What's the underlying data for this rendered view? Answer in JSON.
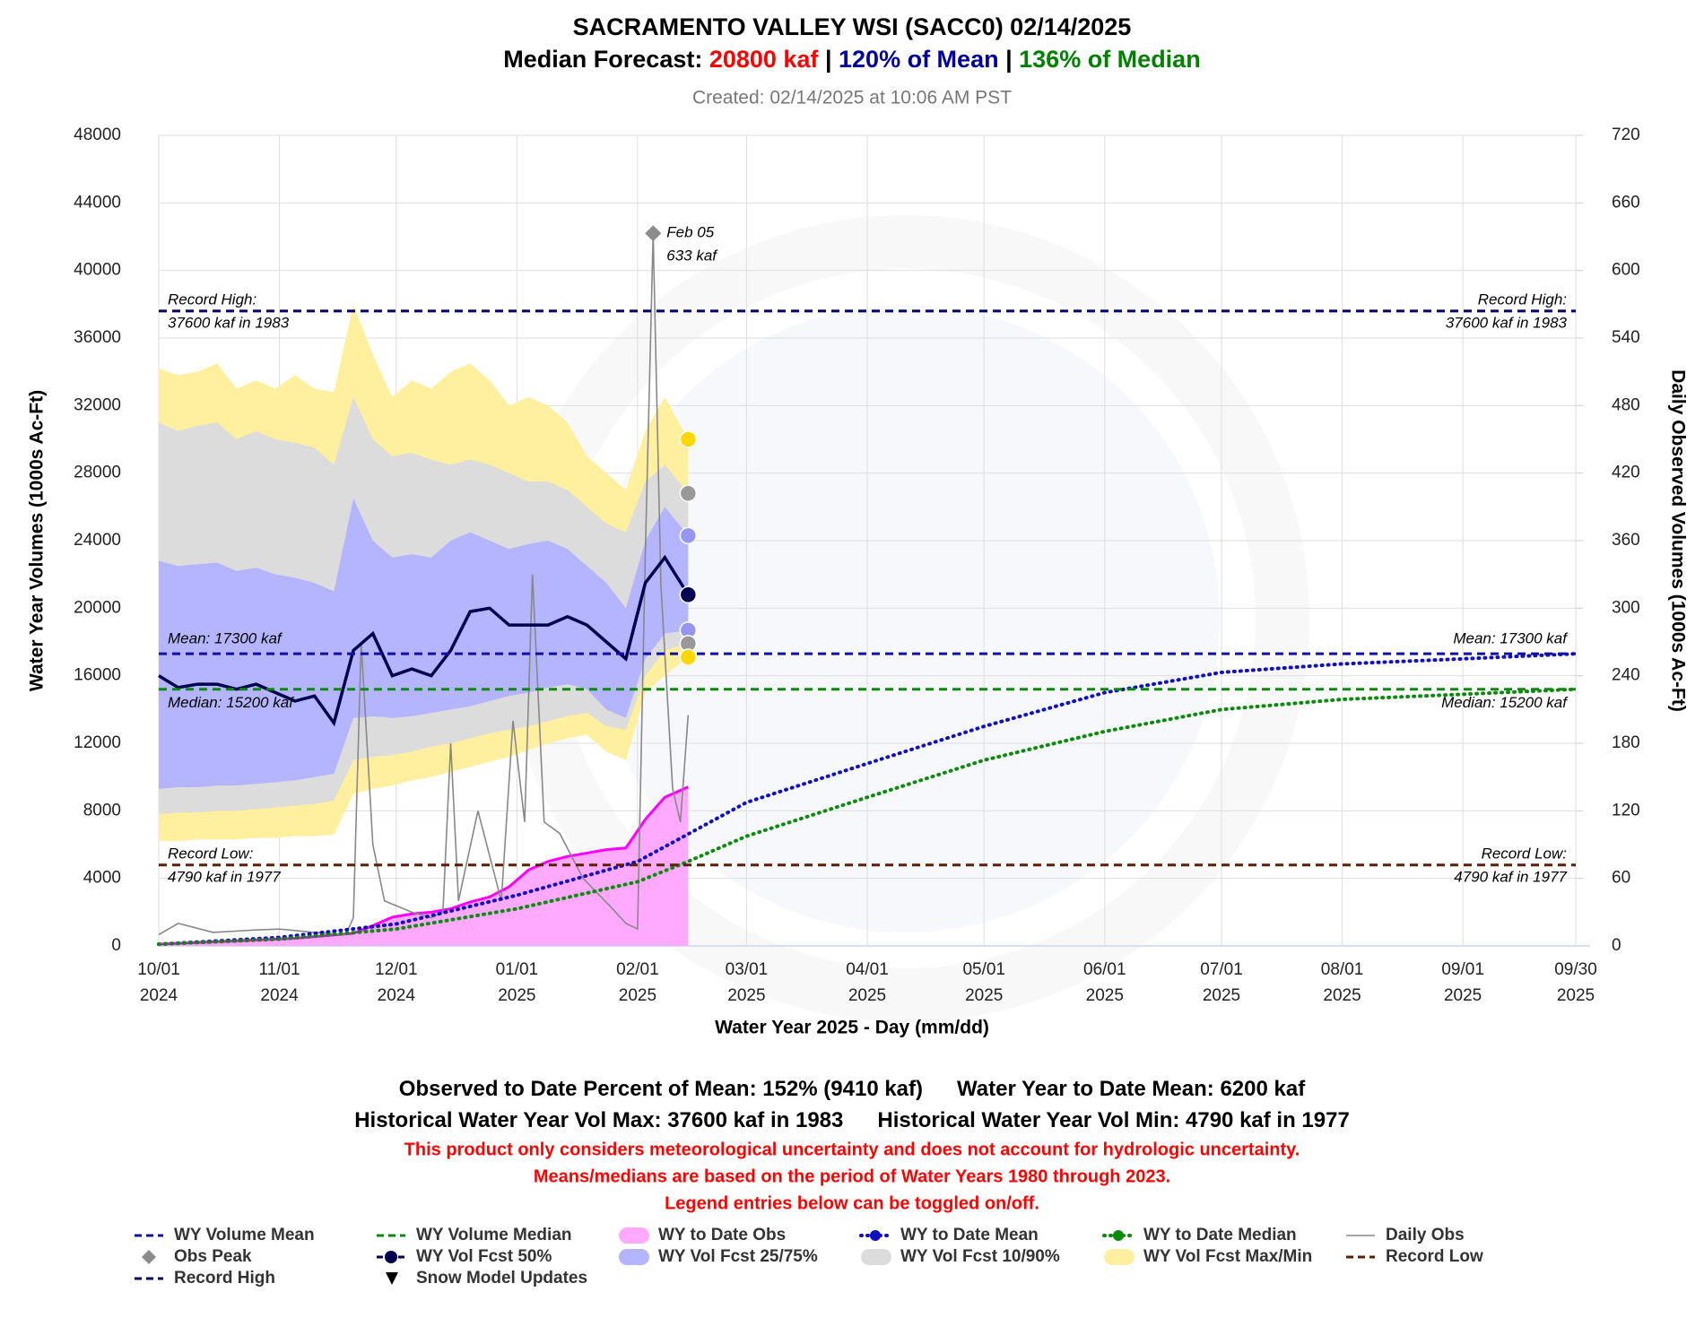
{
  "chart_data": {
    "type": "hydrograph",
    "title": "SACRAMENTO VALLEY WSI (SACC0)  02/14/2025",
    "title_parts": [
      {
        "text": "Median Forecast: ",
        "color": "#000000"
      },
      {
        "text": "20800 kaf",
        "color": "#ff0000"
      },
      {
        "text": "  |  ",
        "color": "#000000"
      },
      {
        "text": "120% of Mean",
        "color": "#00009c"
      },
      {
        "text": "  |  ",
        "color": "#000000"
      },
      {
        "text": "136% of Median",
        "color": "#008000"
      }
    ],
    "subtitle": "Created: 02/14/2025 at 10:06 AM PST",
    "x_label": "Water Year 2025 - Day (mm/dd)",
    "y_label": "Water Year Volumes (1000s Ac-Ft)",
    "y2_label": "Daily Observed Volumes (1000s Ac-Ft)",
    "xlim": [
      "2024-10-01",
      "2025-09-30"
    ],
    "xticks": [
      {
        "value": "2024-10-01",
        "label": [
          "10/01",
          "2024"
        ]
      },
      {
        "value": "2024-11-01",
        "label": [
          "11/01",
          "2024"
        ]
      },
      {
        "value": "2024-12-01",
        "label": [
          "12/01",
          "2024"
        ]
      },
      {
        "value": "2025-01-01",
        "label": [
          "01/01",
          "2025"
        ]
      },
      {
        "value": "2025-02-01",
        "label": [
          "02/01",
          "2025"
        ]
      },
      {
        "value": "2025-03-01",
        "label": [
          "03/01",
          "2025"
        ]
      },
      {
        "value": "2025-04-01",
        "label": [
          "04/01",
          "2025"
        ]
      },
      {
        "value": "2025-05-01",
        "label": [
          "05/01",
          "2025"
        ]
      },
      {
        "value": "2025-06-01",
        "label": [
          "06/01",
          "2025"
        ]
      },
      {
        "value": "2025-07-01",
        "label": [
          "07/01",
          "2025"
        ]
      },
      {
        "value": "2025-08-01",
        "label": [
          "08/01",
          "2025"
        ]
      },
      {
        "value": "2025-09-01",
        "label": [
          "09/01",
          "2025"
        ]
      },
      {
        "value": "2025-09-30",
        "label": [
          "09/30",
          "2025"
        ]
      }
    ],
    "ylim": [
      0,
      48000
    ],
    "yticks": [
      0,
      4000,
      8000,
      12000,
      16000,
      20000,
      24000,
      28000,
      32000,
      36000,
      40000,
      44000,
      48000
    ],
    "y2lim": [
      0,
      720
    ],
    "y2ticks": [
      0,
      60,
      120,
      180,
      240,
      300,
      360,
      420,
      480,
      540,
      600,
      660,
      720
    ],
    "grid": true,
    "x": [
      "2024-10-01",
      "2024-10-06",
      "2024-10-11",
      "2024-10-16",
      "2024-10-21",
      "2024-10-26",
      "2024-10-31",
      "2024-11-05",
      "2024-11-10",
      "2024-11-15",
      "2024-11-20",
      "2024-11-25",
      "2024-11-30",
      "2024-12-05",
      "2024-12-10",
      "2024-12-15",
      "2024-12-20",
      "2024-12-25",
      "2024-12-30",
      "2025-01-04",
      "2025-01-09",
      "2025-01-14",
      "2025-01-19",
      "2025-01-24",
      "2025-01-29",
      "2025-02-03",
      "2025-02-08",
      "2025-02-14"
    ],
    "series": [
      {
        "name": "WY Volume Mean",
        "kind": "hline",
        "color": "#1010a8",
        "value": 17300,
        "label": [
          "Mean: 17300 kaf"
        ],
        "label_side": "above"
      },
      {
        "name": "WY Volume Median",
        "kind": "hline",
        "color": "#0a8a0a",
        "value": 15200,
        "label": [
          "Median: 15200 kaf"
        ],
        "label_side": "below"
      },
      {
        "name": "WY to Date Obs",
        "kind": "area",
        "color": "#ff00ff",
        "fill": "#ffaaff",
        "values": [
          100,
          150,
          200,
          250,
          300,
          350,
          400,
          450,
          550,
          650,
          750,
          1200,
          1700,
          1900,
          2000,
          2200,
          2600,
          2900,
          3500,
          4500,
          5000,
          5300,
          5500,
          5700,
          5800,
          7500,
          8800,
          9410
        ]
      },
      {
        "name": "WY to Date Mean",
        "kind": "dotted",
        "color": "#1010c0",
        "x": [
          "2024-10-01",
          "2024-11-01",
          "2024-12-01",
          "2025-01-01",
          "2025-02-01",
          "2025-03-01",
          "2025-04-01",
          "2025-05-01",
          "2025-06-01",
          "2025-07-01",
          "2025-08-01",
          "2025-09-01",
          "2025-09-30"
        ],
        "values": [
          100,
          500,
          1300,
          3000,
          5000,
          8500,
          10800,
          13000,
          15000,
          16200,
          16700,
          17000,
          17300
        ]
      },
      {
        "name": "WY to Date Median",
        "kind": "dotted",
        "color": "#0a8a0a",
        "x": [
          "2024-10-01",
          "2024-11-01",
          "2024-12-01",
          "2025-01-01",
          "2025-02-01",
          "2025-02-14",
          "2025-03-01",
          "2025-04-01",
          "2025-05-01",
          "2025-06-01",
          "2025-07-01",
          "2025-08-01",
          "2025-09-01",
          "2025-09-30"
        ],
        "values": [
          100,
          400,
          1000,
          2200,
          3800,
          5000,
          6500,
          8800,
          11000,
          12700,
          14000,
          14600,
          14900,
          15200
        ]
      },
      {
        "name": "Daily Obs",
        "kind": "line",
        "axis": "y2",
        "color": "#888888",
        "x": [
          "2024-10-01",
          "2024-10-06",
          "2024-10-15",
          "2024-10-25",
          "2024-11-01",
          "2024-11-10",
          "2024-11-18",
          "2024-11-20",
          "2024-11-22",
          "2024-11-25",
          "2024-11-28",
          "2024-12-05",
          "2024-12-10",
          "2024-12-13",
          "2024-12-15",
          "2024-12-17",
          "2024-12-22",
          "2024-12-25",
          "2024-12-28",
          "2024-12-31",
          "2025-01-03",
          "2025-01-05",
          "2025-01-08",
          "2025-01-12",
          "2025-01-18",
          "2025-01-25",
          "2025-01-29",
          "2025-02-01",
          "2025-02-03",
          "2025-02-05",
          "2025-02-07",
          "2025-02-10",
          "2025-02-12",
          "2025-02-14"
        ],
        "values": [
          10,
          20,
          12,
          14,
          15,
          12,
          10,
          25,
          270,
          90,
          40,
          30,
          25,
          30,
          180,
          40,
          120,
          80,
          40,
          200,
          110,
          330,
          110,
          100,
          60,
          35,
          20,
          15,
          350,
          633,
          320,
          140,
          110,
          205
        ]
      },
      {
        "name": "Obs Peak",
        "kind": "marker",
        "axis": "y2",
        "color": "#8c8c8c",
        "x": [
          "2025-02-05"
        ],
        "values": [
          633
        ],
        "annotation": [
          "Feb 05",
          "633 kaf"
        ]
      },
      {
        "name": "WY Vol Fcst 50%",
        "kind": "fcst",
        "color": "#000050",
        "values": [
          16000,
          15300,
          15500,
          15500,
          15200,
          15500,
          15000,
          14500,
          14800,
          13200,
          17500,
          18500,
          16000,
          16400,
          16000,
          17500,
          19800,
          20000,
          19000,
          19000,
          19000,
          19500,
          19000,
          18000,
          17000,
          21500,
          23000,
          20800
        ]
      },
      {
        "name": "WY Vol Fcst 25/75%",
        "kind": "band",
        "color": "#b4b4ff",
        "dot_color": "#9696f0",
        "upper": [
          22800,
          22500,
          22600,
          22700,
          22200,
          22400,
          22000,
          21800,
          21500,
          21000,
          26500,
          24000,
          23000,
          23200,
          23000,
          24000,
          24500,
          24000,
          23500,
          23800,
          24000,
          23500,
          22500,
          21500,
          20000,
          24000,
          26000,
          24300
        ],
        "lower": [
          9300,
          9400,
          9400,
          9500,
          9500,
          9600,
          9700,
          9800,
          10000,
          10200,
          13500,
          13600,
          13500,
          13600,
          13800,
          14000,
          14200,
          14500,
          14800,
          15000,
          15300,
          15500,
          15200,
          14000,
          13500,
          17000,
          18500,
          18700
        ]
      },
      {
        "name": "WY Vol Fcst 10/90%",
        "kind": "band",
        "color": "#dcdcdc",
        "dot_color": "#999999",
        "upper": [
          31000,
          30500,
          30800,
          31000,
          30000,
          30500,
          30000,
          29800,
          29500,
          28500,
          32500,
          30000,
          29000,
          29200,
          28800,
          28500,
          28800,
          28500,
          28000,
          27500,
          27500,
          27000,
          26000,
          25000,
          24500,
          27500,
          28500,
          26800
        ],
        "lower": [
          7800,
          7900,
          7900,
          8000,
          8000,
          8100,
          8200,
          8300,
          8400,
          8600,
          11000,
          11200,
          11300,
          11500,
          11800,
          12000,
          12300,
          12600,
          12800,
          13000,
          13300,
          13600,
          13800,
          13000,
          12800,
          16000,
          17500,
          17900
        ]
      },
      {
        "name": "WY Vol Fcst Max/Min",
        "kind": "band",
        "color": "#fff0a0",
        "dot_color": "#ffd700",
        "upper": [
          34200,
          33800,
          34000,
          34500,
          33000,
          33500,
          33000,
          33800,
          33000,
          32800,
          38000,
          35000,
          32500,
          33500,
          33000,
          34000,
          34500,
          33500,
          32000,
          32500,
          32000,
          31000,
          29000,
          28000,
          27000,
          30500,
          32500,
          30000
        ],
        "lower": [
          6200,
          6200,
          6300,
          6300,
          6300,
          6400,
          6400,
          6500,
          6500,
          6600,
          9000,
          9300,
          9500,
          9800,
          10000,
          10300,
          10600,
          10900,
          11200,
          11600,
          12000,
          12300,
          12500,
          11500,
          11000,
          15000,
          16000,
          17100
        ]
      },
      {
        "name": "Record Low",
        "kind": "hline",
        "color": "#5a2000",
        "value": 4790,
        "label": [
          "Record Low:",
          "4790 kaf in 1977"
        ],
        "label_side": "split"
      },
      {
        "name": "Record High",
        "kind": "hline",
        "color": "#000066",
        "value": 37600,
        "label": [
          "Record High:",
          "37600 kaf in 1983"
        ],
        "label_side": "split"
      },
      {
        "name": "Snow Model Updates",
        "kind": "snow",
        "color": "#000000"
      }
    ],
    "stats": [
      [
        "Observed to Date Percent of Mean: 152% (9410 kaf)",
        "Water Year to Date Mean: 6200 kaf"
      ],
      [
        "Historical Water Year Vol Max: 37600 kaf in 1983",
        "Historical Water Year Vol Min: 4790 kaf in 1977"
      ]
    ],
    "notes": [
      "This product only considers meteorological uncertainty and does not account for hydrologic uncertainty.",
      "Means/medians are based on the period of Water Years 1980 through 2023.",
      "Legend entries below can be toggled on/off."
    ]
  }
}
